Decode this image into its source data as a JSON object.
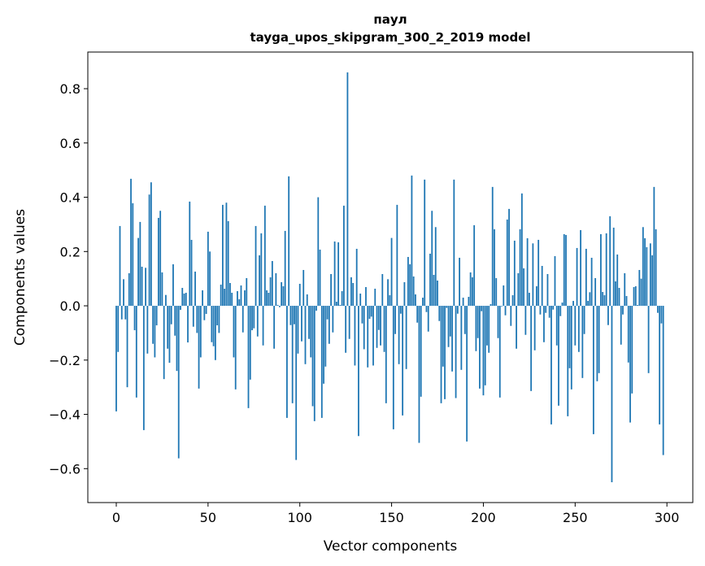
{
  "chart_data": {
    "type": "bar",
    "title": "паул",
    "subtitle": "tayga_upos_skipgram_300_2_2019 model",
    "xlabel": "Vector components",
    "ylabel": "Components values",
    "xlim": [
      -15.5,
      314.1
    ],
    "ylim": [
      -0.725,
      0.935
    ],
    "xticks": [
      0,
      50,
      100,
      150,
      200,
      250,
      300
    ],
    "xtick_labels": [
      "0",
      "50",
      "100",
      "150",
      "200",
      "250",
      "300"
    ],
    "yticks": [
      -0.6,
      -0.4,
      -0.2,
      0.0,
      0.2,
      0.4,
      0.6,
      0.8
    ],
    "ytick_labels": [
      "−0.6",
      "−0.4",
      "−0.2",
      "0.0",
      "0.2",
      "0.4",
      "0.6",
      "0.8"
    ],
    "grid": false,
    "bar_color": "#1f77b4",
    "values": [
      -0.389,
      -0.17,
      0.294,
      -0.05,
      0.098,
      -0.05,
      -0.3,
      0.12,
      0.468,
      0.378,
      -0.09,
      -0.338,
      0.25,
      0.309,
      0.144,
      -0.458,
      0.14,
      -0.176,
      0.41,
      0.455,
      -0.14,
      -0.19,
      -0.072,
      0.324,
      0.35,
      0.123,
      -0.27,
      0.04,
      -0.158,
      -0.21,
      -0.068,
      0.153,
      -0.11,
      -0.24,
      -0.562,
      -0.015,
      0.066,
      0.045,
      0.048,
      -0.135,
      0.384,
      0.243,
      -0.077,
      0.126,
      -0.1,
      -0.305,
      -0.19,
      0.057,
      -0.053,
      -0.03,
      0.273,
      0.2,
      -0.134,
      -0.149,
      -0.2,
      -0.072,
      -0.1,
      0.078,
      0.372,
      0.063,
      0.38,
      0.312,
      0.084,
      0.048,
      -0.19,
      -0.308,
      0.054,
      0.024,
      0.075,
      -0.098,
      0.057,
      0.102,
      -0.377,
      -0.272,
      -0.09,
      -0.083,
      0.294,
      -0.113,
      0.186,
      0.267,
      -0.146,
      0.369,
      0.057,
      0.048,
      0.105,
      0.165,
      -0.158,
      0.12,
      0.003,
      -0.005,
      0.087,
      0.072,
      0.276,
      -0.413,
      0.477,
      -0.071,
      -0.359,
      -0.068,
      -0.568,
      -0.176,
      0.081,
      -0.131,
      0.132,
      -0.215,
      0.042,
      -0.122,
      -0.19,
      -0.37,
      -0.425,
      -0.018,
      0.4,
      0.207,
      -0.413,
      -0.287,
      -0.224,
      -0.05,
      -0.14,
      0.117,
      -0.098,
      0.237,
      0.015,
      0.234,
      0.003,
      0.054,
      0.369,
      -0.173,
      0.86,
      -0.122,
      0.105,
      0.084,
      -0.22,
      0.21,
      -0.48,
      0.045,
      -0.065,
      -0.16,
      0.069,
      -0.227,
      -0.048,
      -0.04,
      -0.22,
      0.063,
      -0.155,
      -0.089,
      -0.146,
      0.117,
      -0.17,
      -0.359,
      0.098,
      0.039,
      0.25,
      -0.455,
      -0.104,
      0.372,
      -0.215,
      -0.029,
      -0.404,
      0.087,
      -0.233,
      0.18,
      0.153,
      0.48,
      0.108,
      0.042,
      -0.062,
      -0.505,
      -0.335,
      0.03,
      0.465,
      -0.023,
      -0.095,
      0.192,
      0.35,
      0.114,
      0.29,
      0.093,
      -0.056,
      -0.359,
      -0.224,
      -0.344,
      -0.008,
      -0.152,
      -0.113,
      -0.242,
      0.465,
      -0.34,
      -0.029,
      0.177,
      -0.236,
      0.03,
      -0.104,
      -0.5,
      0.033,
      0.123,
      0.105,
      0.297,
      -0.167,
      -0.119,
      -0.305,
      -0.02,
      -0.33,
      -0.293,
      -0.146,
      -0.173,
      0.006,
      0.438,
      0.282,
      0.102,
      -0.119,
      -0.338,
      -0.002,
      0.075,
      -0.035,
      0.318,
      0.357,
      -0.074,
      0.039,
      0.24,
      -0.158,
      0.12,
      0.282,
      0.414,
      0.138,
      -0.107,
      0.249,
      0.048,
      -0.314,
      0.23,
      -0.164,
      0.072,
      0.243,
      -0.032,
      0.147,
      -0.134,
      -0.026,
      0.117,
      -0.044,
      -0.437,
      -0.014,
      0.183,
      -0.146,
      -0.368,
      -0.038,
      0.012,
      0.264,
      0.261,
      -0.407,
      -0.23,
      -0.308,
      0.018,
      -0.146,
      0.213,
      -0.17,
      0.279,
      -0.266,
      -0.104,
      0.21,
      0.018,
      0.05,
      0.177,
      -0.473,
      0.102,
      -0.278,
      -0.248,
      0.264,
      0.051,
      0.039,
      0.267,
      -0.071,
      0.33,
      -0.65,
      0.288,
      0.09,
      0.189,
      0.066,
      -0.143,
      -0.032,
      0.12,
      0.036,
      -0.209,
      -0.43,
      -0.323,
      0.069,
      0.072,
      0.003,
      0.132,
      0.1,
      0.29,
      0.249,
      0.216,
      -0.248,
      0.23,
      0.186,
      0.438,
      0.282,
      -0.026,
      -0.437,
      -0.065,
      -0.55
    ]
  }
}
